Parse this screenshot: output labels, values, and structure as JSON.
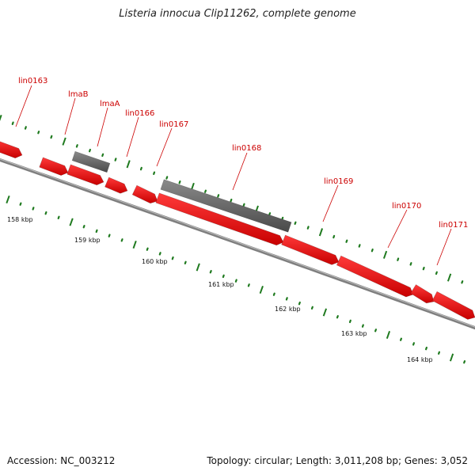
{
  "title": "Listeria innocua Clip11262, complete genome",
  "footer": {
    "accession": "Accession: NC_003212",
    "summary": "Topology: circular; Length: 3,011,208 bp; Genes: 3,052"
  },
  "colors": {
    "forward_gene": "#ff0000",
    "rna_gene": "#666666",
    "backbone": "#7f7f7f",
    "ticks": "#1f7a1f",
    "label": "#cc0000"
  },
  "scale_labels": [
    "158 kbp",
    "159 kbp",
    "160 kbp",
    "161 kbp",
    "162 kbp",
    "163 kbp",
    "164 kbp"
  ],
  "genes": [
    {
      "name": "",
      "type": "forward"
    },
    {
      "name": "lin0163",
      "type": "forward"
    },
    {
      "name": "lmaB",
      "type": "rna"
    },
    {
      "name": "lmaA",
      "type": "forward"
    },
    {
      "name": "lin0166",
      "type": "forward"
    },
    {
      "name": "lin0167",
      "type": "forward"
    },
    {
      "name": "lin0168",
      "type": "rna"
    },
    {
      "name": "lin0169",
      "type": "forward"
    },
    {
      "name": "lin0170",
      "type": "forward"
    },
    {
      "name": "lin0171",
      "type": "forward"
    },
    {
      "name": "",
      "type": "forward"
    }
  ]
}
